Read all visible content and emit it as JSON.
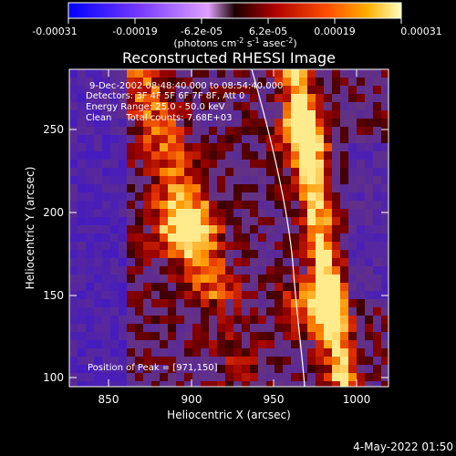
{
  "colorbar": {
    "tick_labels": [
      "-0.00031",
      "-0.00019",
      "-6.2e-05",
      "6.2e-05",
      "0.00019",
      "0.00031"
    ],
    "units_line": "(photons cm",
    "units_sup1": "-2",
    "units_mid": " s",
    "units_sup2": "-1",
    "units_end": " asec",
    "units_sup3": "-2",
    "units_close": ")"
  },
  "plot": {
    "title": "Reconstructed RHESSI Image",
    "xlabel": "Heliocentric X (arcsec)",
    "ylabel": "Heliocentric Y (arcsec)",
    "x_ticks": [
      "850",
      "900",
      "950",
      "1000"
    ],
    "y_ticks": [
      "100",
      "150",
      "200",
      "250"
    ],
    "xlim": [
      826,
      1018
    ],
    "ylim": [
      97,
      288
    ],
    "info_lines": [
      "9-Dec-2002 08:48:40.000 to 08:54:40.000",
      "Detectors: 3F 4F 5F 6F 7F 8F, Att 0",
      "Energy Range: 25.0 - 50.0 keV",
      "Clean     Total counts: 7.68E+03"
    ],
    "peak_label": "Position of Peak = [971,150]"
  },
  "footer": {
    "date": "4-May-2022 01:50"
  },
  "colors": {
    "background": "#000000",
    "axis": "#ffffff",
    "limb": "#ffffff"
  }
}
